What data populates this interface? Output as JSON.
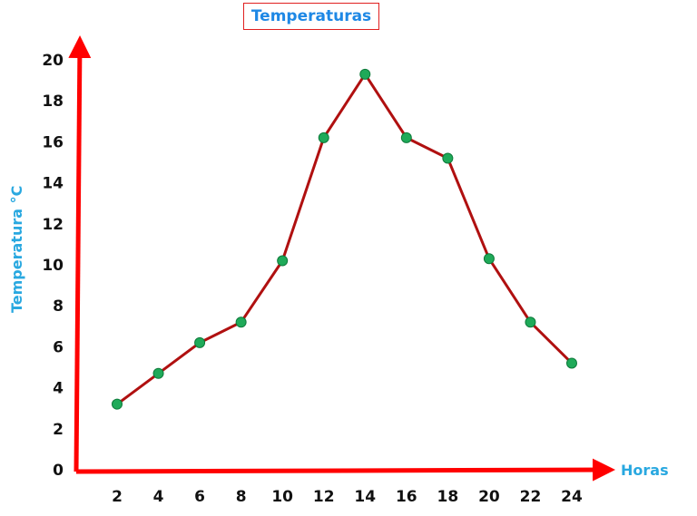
{
  "chart_data": {
    "type": "line",
    "title": "Temperaturas",
    "xlabel": "Horas",
    "ylabel": "Temperatura °C",
    "x": [
      2,
      4,
      6,
      8,
      10,
      12,
      14,
      16,
      18,
      20,
      22,
      24
    ],
    "x_tick_labels": [
      "2",
      "4",
      "6",
      "8",
      "10",
      "12",
      "14",
      "16",
      "18",
      "20",
      "22",
      "24"
    ],
    "y_tick_labels": [
      "0",
      "2",
      "4",
      "6",
      "8",
      "10",
      "12",
      "14",
      "16",
      "18",
      "20"
    ],
    "series": [
      {
        "values": [
          3.2,
          4.7,
          6.2,
          7.2,
          10.2,
          16.2,
          19.3,
          16.2,
          15.2,
          10.3,
          7.2,
          5.2
        ]
      }
    ],
    "ylim": [
      0,
      20
    ],
    "grid": false,
    "colors": {
      "axis": "#ff0000",
      "line": "#b01010",
      "marker": "#1faa59",
      "marker_edge": "#0d7a3a",
      "axis_title": "#29a8e0",
      "title": "#1e88e5",
      "title_border": "#e02020"
    }
  }
}
